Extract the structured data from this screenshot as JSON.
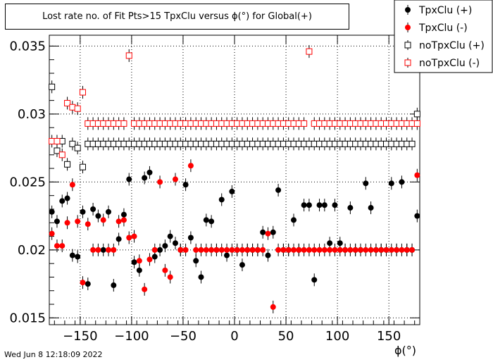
{
  "chart_data": {
    "type": "scatter",
    "title": "Lost rate no. of Fit Pts>15 TpxClu versus ϕ(°) for Global(+)",
    "xlabel": "ϕ(°)",
    "ylabel": "",
    "xlim": [
      -180,
      180
    ],
    "ylim": [
      0.0145,
      0.0358
    ],
    "x_ticks": [
      -150,
      -100,
      -50,
      0,
      50,
      100,
      150
    ],
    "y_ticks": [
      0.015,
      0.02,
      0.025,
      0.03,
      0.035
    ],
    "y_tick_labels": [
      "0.015",
      "0.02",
      "0.025",
      "0.03",
      "0.035"
    ],
    "grid": true,
    "legend_position": "top-right",
    "error_bars": true,
    "x": [
      -177.5,
      -172.5,
      -167.5,
      -162.5,
      -157.5,
      -152.5,
      -147.5,
      -142.5,
      -137.5,
      -132.5,
      -127.5,
      -122.5,
      -117.5,
      -112.5,
      -107.5,
      -102.5,
      -97.5,
      -92.5,
      -87.5,
      -82.5,
      -77.5,
      -72.5,
      -67.5,
      -62.5,
      -57.5,
      -52.5,
      -47.5,
      -42.5,
      -37.5,
      -32.5,
      -27.5,
      -22.5,
      -17.5,
      -12.5,
      -7.5,
      -2.5,
      2.5,
      7.5,
      12.5,
      17.5,
      22.5,
      27.5,
      32.5,
      37.5,
      42.5,
      47.5,
      52.5,
      57.5,
      62.5,
      67.5,
      72.5,
      77.5,
      82.5,
      87.5,
      92.5,
      97.5,
      102.5,
      107.5,
      112.5,
      117.5,
      122.5,
      127.5,
      132.5,
      137.5,
      142.5,
      147.5,
      152.5,
      157.5,
      162.5,
      167.5,
      172.5,
      177.5
    ],
    "series": [
      {
        "name": "TpxClu (+)",
        "marker": "filled-circle",
        "color": "#000000",
        "values": [
          0.0228,
          0.0221,
          0.0236,
          0.0238,
          0.0196,
          0.0195,
          0.0228,
          0.0175,
          0.023,
          0.0225,
          0.02,
          0.0228,
          0.0174,
          0.0208,
          0.0226,
          0.0252,
          0.0191,
          0.0185,
          0.0253,
          0.0257,
          0.0195,
          0.02,
          0.0203,
          0.021,
          0.0205,
          0.02,
          0.0248,
          0.0209,
          0.0192,
          0.018,
          0.0222,
          0.0221,
          0.02,
          0.0237,
          0.0196,
          0.0243,
          0.02,
          0.0189,
          0.02,
          0.02,
          0.02,
          0.0213,
          0.0196,
          0.0213,
          0.0244,
          0.02,
          0.02,
          0.0222,
          0.02,
          0.0233,
          0.0233,
          0.0178,
          0.0233,
          0.0233,
          0.0205,
          0.0233,
          0.0205,
          0.02,
          0.0231,
          0.02,
          0.02,
          0.0249,
          0.0231,
          0.02,
          0.02,
          0.02,
          0.0249,
          0.02,
          0.025,
          0.02,
          0.02,
          0.0225
        ]
      },
      {
        "name": "TpxClu (-)",
        "marker": "filled-circle",
        "color": "#ff0000",
        "values": [
          0.0212,
          0.0203,
          0.0203,
          0.022,
          0.0248,
          0.0221,
          0.0176,
          0.0219,
          0.02,
          0.02,
          0.0222,
          0.02,
          0.02,
          0.0221,
          0.0222,
          0.0209,
          0.021,
          0.0192,
          0.0171,
          0.0193,
          0.02,
          0.025,
          0.0185,
          0.018,
          0.0252,
          0.02,
          0.02,
          0.0262,
          0.02,
          0.02,
          0.02,
          0.02,
          0.02,
          0.02,
          0.02,
          0.02,
          0.02,
          0.02,
          0.02,
          0.02,
          0.02,
          0.02,
          0.0212,
          0.0158,
          0.02,
          0.02,
          0.02,
          0.02,
          0.02,
          0.02,
          0.02,
          0.02,
          0.02,
          0.02,
          0.02,
          0.02,
          0.02,
          0.02,
          0.02,
          0.02,
          0.02,
          0.02,
          0.02,
          0.02,
          0.02,
          0.02,
          0.02,
          0.02,
          0.02,
          0.02,
          0.02,
          0.0255
        ]
      },
      {
        "name": "noTpxClu (+)",
        "marker": "open-square",
        "color": "#000000",
        "values": [
          0.032,
          0.0273,
          0.028,
          0.0263,
          0.0278,
          0.0275,
          0.0261,
          0.0278,
          0.0278,
          0.0278,
          0.0278,
          0.0278,
          0.0278,
          0.0278,
          0.0278,
          0.0278,
          0.0278,
          0.0278,
          0.0278,
          0.0278,
          0.0278,
          0.0278,
          0.0278,
          0.0278,
          0.0278,
          0.0278,
          0.0278,
          0.0278,
          0.0278,
          0.0278,
          0.0278,
          0.0278,
          0.0278,
          0.0278,
          0.0278,
          0.0278,
          0.0278,
          0.0278,
          0.0278,
          0.0278,
          0.0278,
          0.0278,
          0.0278,
          0.0278,
          0.0278,
          0.0278,
          0.0278,
          0.0278,
          0.0278,
          0.0278,
          0.0278,
          0.0278,
          0.0278,
          0.0278,
          0.0278,
          0.0278,
          0.0278,
          0.0278,
          0.0278,
          0.0278,
          0.0278,
          0.0278,
          0.0278,
          0.0278,
          0.0278,
          0.0278,
          0.0278,
          0.0278,
          0.0278,
          0.0278,
          0.0278,
          0.03
        ]
      },
      {
        "name": "noTpxClu (-)",
        "marker": "open-square",
        "color": "#ff0000",
        "values": [
          0.028,
          0.028,
          0.027,
          0.0308,
          0.0305,
          0.0304,
          0.0316,
          0.0293,
          0.0293,
          0.0293,
          0.0293,
          0.0293,
          0.0293,
          0.0293,
          0.0293,
          0.0343,
          0.0293,
          0.0293,
          0.0293,
          0.0293,
          0.0293,
          0.0293,
          0.0293,
          0.0293,
          0.0293,
          0.0293,
          0.0293,
          0.0293,
          0.0293,
          0.0293,
          0.0293,
          0.0293,
          0.0293,
          0.0293,
          0.0293,
          0.0293,
          0.0293,
          0.0293,
          0.0293,
          0.0293,
          0.0293,
          0.0293,
          0.0293,
          0.0293,
          0.0293,
          0.0293,
          0.0293,
          0.0293,
          0.0293,
          0.0293,
          0.0346,
          0.0293,
          0.0293,
          0.0293,
          0.0293,
          0.0293,
          0.0293,
          0.0293,
          0.0293,
          0.0293,
          0.0293,
          0.0293,
          0.0293,
          0.0293,
          0.0293,
          0.0293,
          0.0293,
          0.0293,
          0.0293,
          0.0293,
          0.0293,
          0.0293
        ]
      }
    ]
  },
  "footer": {
    "timestamp": "Wed Jun  8 12:18:09 2022"
  }
}
